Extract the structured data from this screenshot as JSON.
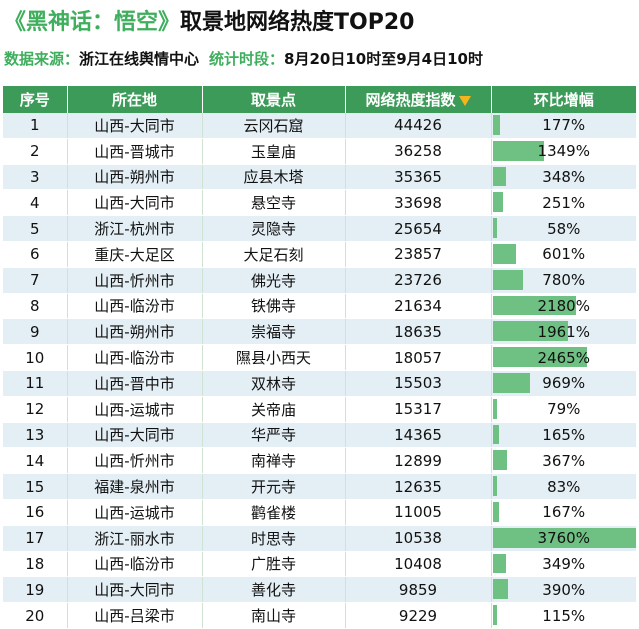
{
  "title": {
    "prefix": "《黑神话：悟空》",
    "main": "取景地网络热度TOP20"
  },
  "subtitle": {
    "source_label": "数据来源：",
    "source_value": "浙江在线舆情中心",
    "period_label": "统计时段：",
    "period_value": "8月20日10时至9月4日10时"
  },
  "colors": {
    "brand_green": "#3fae5d",
    "header_bg": "#3d9b5a",
    "bar": "#6fc183",
    "row_alt": "#e4eff5",
    "sort_icon": "#f2b51e"
  },
  "table": {
    "headers": [
      "序号",
      "所在地",
      "取景点",
      "网络热度指数",
      "环比增幅"
    ],
    "sort_icon": "triangle-down-icon",
    "rows": [
      {
        "rank": "1",
        "location": "山西-大同市",
        "site": "云冈石窟",
        "heat": "44426",
        "growth": "177%",
        "growth_pct": 177
      },
      {
        "rank": "2",
        "location": "山西-晋城市",
        "site": "玉皇庙",
        "heat": "36258",
        "growth": "1349%",
        "growth_pct": 1349
      },
      {
        "rank": "3",
        "location": "山西-朔州市",
        "site": "应县木塔",
        "heat": "35365",
        "growth": "348%",
        "growth_pct": 348
      },
      {
        "rank": "4",
        "location": "山西-大同市",
        "site": "悬空寺",
        "heat": "33698",
        "growth": "251%",
        "growth_pct": 251
      },
      {
        "rank": "5",
        "location": "浙江-杭州市",
        "site": "灵隐寺",
        "heat": "25654",
        "growth": "58%",
        "growth_pct": 58
      },
      {
        "rank": "6",
        "location": "重庆-大足区",
        "site": "大足石刻",
        "heat": "23857",
        "growth": "601%",
        "growth_pct": 601
      },
      {
        "rank": "7",
        "location": "山西-忻州市",
        "site": "佛光寺",
        "heat": "23726",
        "growth": "780%",
        "growth_pct": 780
      },
      {
        "rank": "8",
        "location": "山西-临汾市",
        "site": "铁佛寺",
        "heat": "21634",
        "growth": "2180%",
        "growth_pct": 2180
      },
      {
        "rank": "9",
        "location": "山西-朔州市",
        "site": "崇福寺",
        "heat": "18635",
        "growth": "1961%",
        "growth_pct": 1961
      },
      {
        "rank": "10",
        "location": "山西-临汾市",
        "site": "隰县小西天",
        "heat": "18057",
        "growth": "2465%",
        "growth_pct": 2465
      },
      {
        "rank": "11",
        "location": "山西-晋中市",
        "site": "双林寺",
        "heat": "15503",
        "growth": "969%",
        "growth_pct": 969
      },
      {
        "rank": "12",
        "location": "山西-运城市",
        "site": "关帝庙",
        "heat": "15317",
        "growth": "79%",
        "growth_pct": 79
      },
      {
        "rank": "13",
        "location": "山西-大同市",
        "site": "华严寺",
        "heat": "14365",
        "growth": "165%",
        "growth_pct": 165
      },
      {
        "rank": "14",
        "location": "山西-忻州市",
        "site": "南禅寺",
        "heat": "12899",
        "growth": "367%",
        "growth_pct": 367
      },
      {
        "rank": "15",
        "location": "福建-泉州市",
        "site": "开元寺",
        "heat": "12635",
        "growth": "83%",
        "growth_pct": 83
      },
      {
        "rank": "16",
        "location": "山西-运城市",
        "site": "鹳雀楼",
        "heat": "11005",
        "growth": "167%",
        "growth_pct": 167
      },
      {
        "rank": "17",
        "location": "浙江-丽水市",
        "site": "时思寺",
        "heat": "10538",
        "growth": "3760%",
        "growth_pct": 3760
      },
      {
        "rank": "18",
        "location": "山西-临汾市",
        "site": "广胜寺",
        "heat": "10408",
        "growth": "349%",
        "growth_pct": 349
      },
      {
        "rank": "19",
        "location": "山西-大同市",
        "site": "善化寺",
        "heat": "9859",
        "growth": "390%",
        "growth_pct": 390
      },
      {
        "rank": "20",
        "location": "山西-吕梁市",
        "site": "南山寺",
        "heat": "9229",
        "growth": "115%",
        "growth_pct": 115
      }
    ]
  }
}
